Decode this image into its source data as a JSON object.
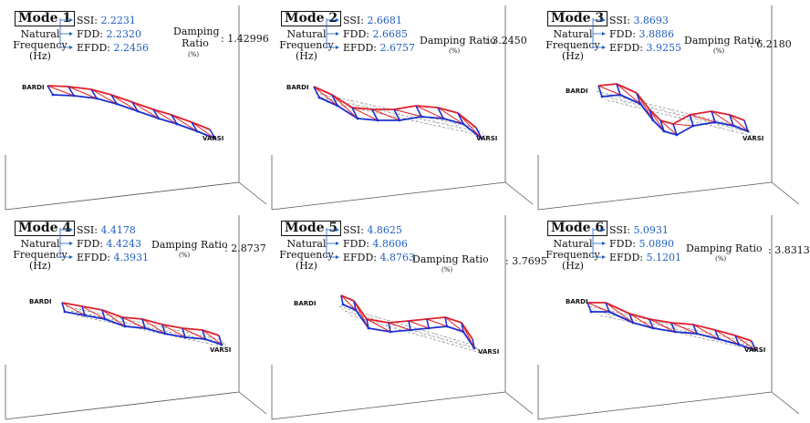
{
  "modes": [
    {
      "title": "Mode 1",
      "freq_label": "Natural Frequency",
      "unit": "(Hz)",
      "ssi_label": "SSI:",
      "ssi": "2.2231",
      "fdd_label": "FDD:",
      "fdd": "2.2320",
      "efdd_label": "EFDD:",
      "efdd": "2.2456",
      "damping_label": "Damping Ratio",
      "damping_unit": "(%)",
      "damping": "1.42996",
      "start_label": "BARDI",
      "end_label": "VARSI"
    },
    {
      "title": "Mode 2",
      "freq_label": "Natural Frequency",
      "unit": "(Hz)",
      "ssi_label": "SSI:",
      "ssi": "2.6681",
      "fdd_label": "FDD:",
      "fdd": "2.6685",
      "efdd_label": "EFDD:",
      "efdd": "2.6757",
      "damping_label": "Damping Ratio",
      "damping_unit": "(%)",
      "damping": "3.2450",
      "start_label": "BARDI",
      "end_label": "VARSI"
    },
    {
      "title": "Mode 3",
      "freq_label": "Natural Frequency",
      "unit": "(Hz)",
      "ssi_label": "SSI:",
      "ssi": "3.8693",
      "fdd_label": "FDD:",
      "fdd": "3.8886",
      "efdd_label": "EFDD:",
      "efdd": "3.9255",
      "damping_label": "Damping Ratio",
      "damping_unit": "(%)",
      "damping": "6.2180",
      "start_label": "BARDI",
      "end_label": "VARSI"
    },
    {
      "title": "Mode 4",
      "freq_label": "Natural Frequency",
      "unit": "(Hz)",
      "ssi_label": "SSI:",
      "ssi": "4.4178",
      "fdd_label": "FDD:",
      "fdd": "4.4243",
      "efdd_label": "EFDD:",
      "efdd": "4.3931",
      "damping_label": "Damping Ratio",
      "damping_unit": "(%)",
      "damping": "2.8737",
      "start_label": "BARDI",
      "end_label": "VARSI"
    },
    {
      "title": "Mode 5",
      "freq_label": "Natural Frequency",
      "unit": "(Hz)",
      "ssi_label": "SSI:",
      "ssi": "4.8625",
      "fdd_label": "FDD:",
      "fdd": "4.8606",
      "efdd_label": "EFDD:",
      "efdd": "4.8763",
      "damping_label": "Damping Ratio",
      "damping_unit": "(%)",
      "damping": "3.7695",
      "start_label": "BARDI",
      "end_label": "VARSI"
    },
    {
      "title": "Mode 6",
      "freq_label": "Natural Frequency",
      "unit": "(Hz)",
      "ssi_label": "SSI:",
      "ssi": "5.0931",
      "fdd_label": "FDD:",
      "fdd": "5.0890",
      "efdd_label": "EFDD:",
      "efdd": "5.1201",
      "damping_label": "Damping Ratio",
      "damping_unit": "(%)",
      "damping": "3.8313",
      "start_label": "BARDI",
      "end_label": "VARSI"
    }
  ],
  "colors": {
    "deformed_top": "#e0202a",
    "deformed_bottom": "#1a2fd0",
    "undeformed": "#9a9a9a",
    "value_text": "#1f5fbf"
  }
}
